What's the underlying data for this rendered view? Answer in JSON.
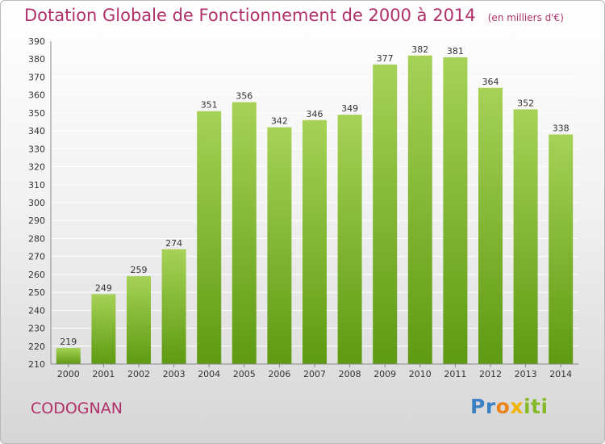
{
  "header": {
    "title": "Dotation Globale de Fonctionnement de 2000 à 2014",
    "unit": "(en milliers d'€)"
  },
  "footer": {
    "commune": "CODOGNAN",
    "logo_text": "Proxiti"
  },
  "colors": {
    "title": "#b0306a",
    "bar_top": "#a6d257",
    "bar_bottom": "#5e9a12",
    "grid": "#ffffff",
    "axis_text": "#333333"
  },
  "chart_data": {
    "type": "bar",
    "title": "Dotation Globale de Fonctionnement de 2000 à 2014",
    "subtitle": "(en milliers d'€)",
    "xlabel": "",
    "ylabel": "",
    "categories": [
      "2000",
      "2001",
      "2002",
      "2003",
      "2004",
      "2005",
      "2006",
      "2007",
      "2008",
      "2009",
      "2010",
      "2011",
      "2012",
      "2013",
      "2014"
    ],
    "values": [
      219,
      249,
      259,
      274,
      351,
      356,
      342,
      346,
      349,
      377,
      382,
      381,
      364,
      352,
      338
    ],
    "ylim": [
      210,
      390
    ],
    "yticks": [
      210,
      220,
      230,
      240,
      250,
      260,
      270,
      280,
      290,
      300,
      310,
      320,
      330,
      340,
      350,
      360,
      370,
      380,
      390
    ],
    "grid": true,
    "legend": "none"
  }
}
